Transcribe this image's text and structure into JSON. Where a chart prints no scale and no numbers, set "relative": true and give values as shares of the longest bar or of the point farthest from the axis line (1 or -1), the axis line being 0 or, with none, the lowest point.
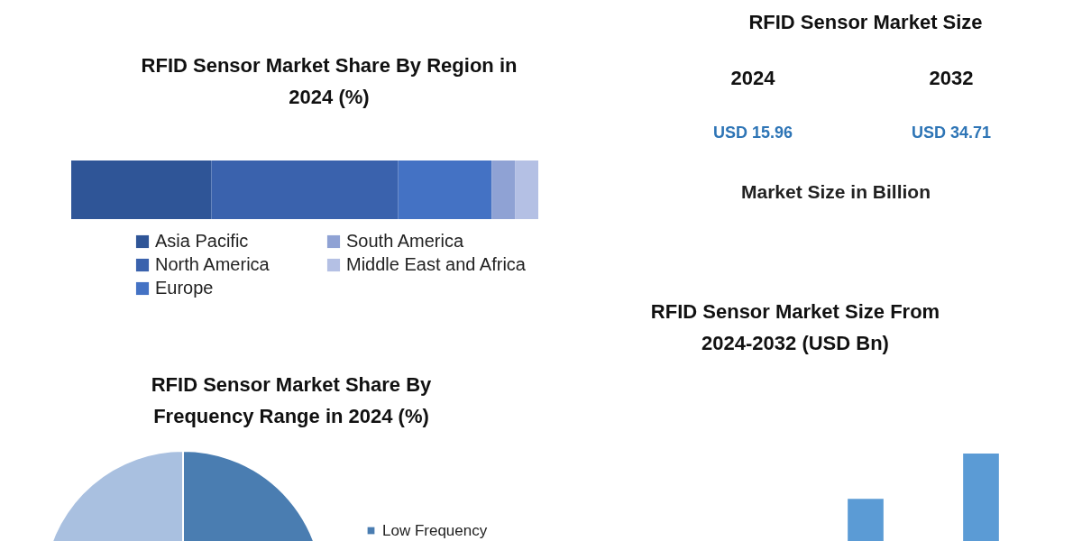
{
  "chart_data": [
    {
      "type": "bar",
      "title": "RFID Sensor Market Share By Region in 2024 (%)",
      "orientation": "horizontal",
      "stacked": true,
      "relative": true,
      "categories": [
        null
      ],
      "tick_labels": false,
      "legend": "bottom",
      "series": [
        {
          "name": "Asia Pacific",
          "color": "#2f5597",
          "values": [
            0.3
          ]
        },
        {
          "name": "North America",
          "color": "#3a62ad",
          "values": [
            0.4
          ]
        },
        {
          "name": "Europe",
          "color": "#4472c4",
          "values": [
            0.2
          ]
        },
        {
          "name": "South America",
          "color": "#8fa2d4",
          "values": [
            0.05
          ]
        },
        {
          "name": "Middle East and Africa",
          "color": "#b4c0e4",
          "values": [
            0.05
          ]
        }
      ]
    },
    {
      "type": "other",
      "title": "RFID Sensor Market Size",
      "categories": [
        "2024",
        "2032"
      ],
      "value_labels": [
        "USD 15.96",
        "USD 34.71"
      ],
      "annotations": [
        "Market Size in Billion"
      ]
    },
    {
      "type": "pie",
      "title": "RFID Sensor Market Share By Frequency Range in 2024 (%)",
      "categories": [
        "Low Frequency",
        null
      ],
      "values": [
        55,
        45
      ],
      "colors": [
        "#4a7db1",
        "#a9c0e0"
      ],
      "legend": "right"
    },
    {
      "type": "bar",
      "title": "RFID Sensor Market Size From 2024-2032 (USD Bn)",
      "categories": [
        null,
        null
      ],
      "values": [
        0.57,
        1
      ],
      "color": "#5b9bd5",
      "relative": true,
      "tick_labels": false
    }
  ]
}
